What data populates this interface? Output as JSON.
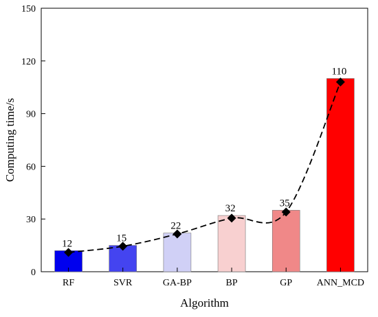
{
  "chart_data": {
    "type": "bar",
    "xlabel": "Algorithm",
    "ylabel": "Computing time/s",
    "ylim": [
      0,
      150
    ],
    "yticks": [
      0,
      30,
      60,
      90,
      120,
      150
    ],
    "grid": false,
    "categories": [
      "RF",
      "SVR",
      "GA-BP",
      "BP",
      "GP",
      "ANN_MCD"
    ],
    "values": [
      12,
      15,
      22,
      32,
      35,
      110
    ],
    "data_labels": [
      "12",
      "15",
      "22",
      "32",
      "35",
      "110"
    ],
    "bar_colors": [
      "#0000ee",
      "#4444f0",
      "#d0d0f6",
      "#f8d0d0",
      "#f08888",
      "#ff0000"
    ],
    "trend_line": {
      "style": "dashed",
      "marker": "diamond",
      "values": [
        11,
        14.5,
        21.5,
        30.5,
        34,
        108
      ]
    }
  }
}
